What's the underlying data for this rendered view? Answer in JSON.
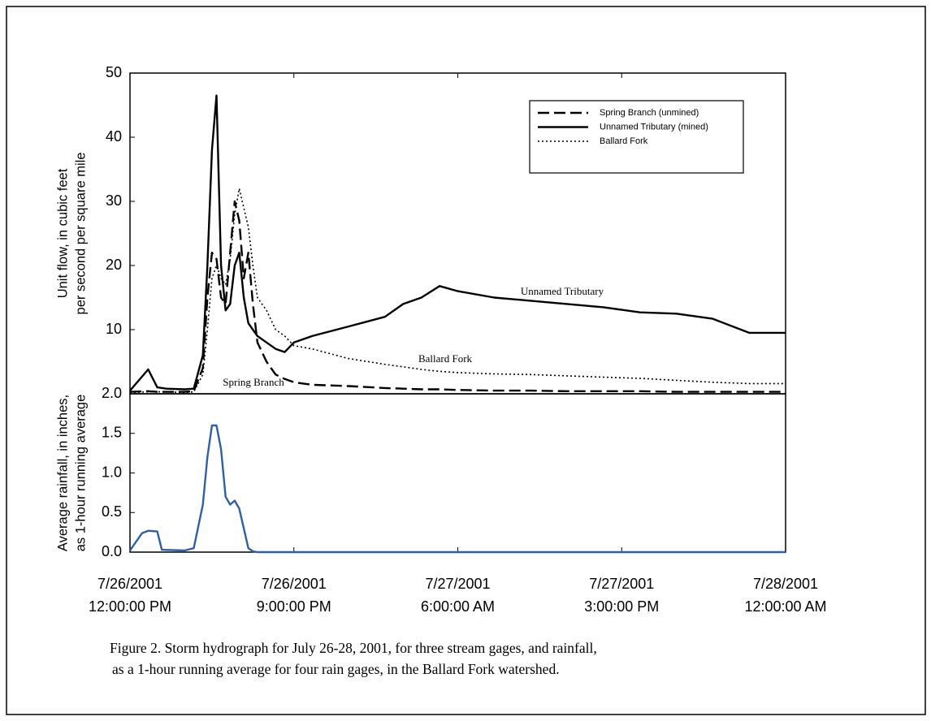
{
  "chart_data": [
    {
      "type": "line",
      "ylabel": [
        "Unit flow, in cubic feet",
        "per second per square mile"
      ],
      "x": [
        "2001-07-26T12:00:00",
        "2001-07-26T13:00:00",
        "2001-07-26T13:30:00",
        "2001-07-26T14:00:00",
        "2001-07-26T15:00:00",
        "2001-07-26T15:30:00",
        "2001-07-26T16:00:00",
        "2001-07-26T16:15:00",
        "2001-07-26T16:30:00",
        "2001-07-26T16:45:00",
        "2001-07-26T17:00:00",
        "2001-07-26T17:15:00",
        "2001-07-26T17:30:00",
        "2001-07-26T17:45:00",
        "2001-07-26T18:00:00",
        "2001-07-26T18:15:00",
        "2001-07-26T18:30:00",
        "2001-07-26T18:45:00",
        "2001-07-26T19:00:00",
        "2001-07-26T19:30:00",
        "2001-07-26T20:00:00",
        "2001-07-26T20:30:00",
        "2001-07-26T21:00:00",
        "2001-07-26T22:00:00",
        "2001-07-27T00:00:00",
        "2001-07-27T02:00:00",
        "2001-07-27T03:00:00",
        "2001-07-27T04:00:00",
        "2001-07-27T05:00:00",
        "2001-07-27T06:00:00",
        "2001-07-27T08:00:00",
        "2001-07-27T10:00:00",
        "2001-07-27T12:00:00",
        "2001-07-27T14:00:00",
        "2001-07-27T16:00:00",
        "2001-07-27T18:00:00",
        "2001-07-27T20:00:00",
        "2001-07-27T22:00:00",
        "2001-07-28T00:00:00"
      ],
      "series": [
        {
          "name": "Spring Branch (unmined)",
          "color": "#000000",
          "dash": "dashed",
          "values": [
            0.3,
            0.4,
            0.3,
            0.3,
            0.3,
            0.4,
            4,
            15,
            22,
            21,
            15,
            14,
            22,
            30,
            27,
            18,
            22,
            14,
            8,
            5,
            3,
            2.3,
            1.8,
            1.4,
            1.2,
            0.9,
            0.8,
            0.7,
            0.7,
            0.6,
            0.5,
            0.5,
            0.4,
            0.4,
            0.4,
            0.3,
            0.3,
            0.3,
            0.3
          ]
        },
        {
          "name": "Unnamed Tributary (mined)",
          "color": "#000000",
          "dash": "solid",
          "values": [
            0.5,
            3.8,
            1,
            0.8,
            0.7,
            0.8,
            6,
            20,
            38,
            46.5,
            20,
            13,
            14,
            20,
            22,
            15,
            11,
            10,
            9,
            8,
            7,
            6.5,
            8,
            9,
            10.5,
            12,
            14,
            15,
            16.8,
            16,
            15,
            14.5,
            14,
            13.5,
            12.7,
            12.5,
            11.7,
            9.5,
            9.5
          ]
        },
        {
          "name": "Ballard Fork",
          "color": "#000000",
          "dash": "dotted",
          "values": [
            0.2,
            0.3,
            0.3,
            0.3,
            0.2,
            0.3,
            3,
            10,
            18,
            20,
            18,
            17,
            21,
            28,
            32,
            29,
            26,
            20,
            15,
            13,
            10,
            9,
            7.5,
            7,
            5.5,
            4.6,
            4.2,
            3.8,
            3.5,
            3.3,
            3.1,
            3,
            2.8,
            2.6,
            2.4,
            2.1,
            1.8,
            1.6,
            1.6
          ]
        }
      ],
      "annotations": [
        "Unnamed Tributary",
        "Ballard Fork",
        "Spring Branch"
      ],
      "xlim": [
        "2001-07-26T12:00:00",
        "2001-07-28T00:00:00"
      ],
      "ylim": [
        0,
        50
      ],
      "yticks": [
        10,
        20,
        30,
        40,
        50
      ],
      "legend": "upper right"
    },
    {
      "type": "line",
      "ylabel": [
        "Average rainfall, in inches,",
        "as 1-hour running average"
      ],
      "x": [
        "2001-07-26T12:00:00",
        "2001-07-26T12:40:00",
        "2001-07-26T13:00:00",
        "2001-07-26T13:30:00",
        "2001-07-26T13:45:00",
        "2001-07-26T15:00:00",
        "2001-07-26T15:30:00",
        "2001-07-26T16:00:00",
        "2001-07-26T16:15:00",
        "2001-07-26T16:30:00",
        "2001-07-26T16:45:00",
        "2001-07-26T17:00:00",
        "2001-07-26T17:15:00",
        "2001-07-26T17:30:00",
        "2001-07-26T17:45:00",
        "2001-07-26T18:00:00",
        "2001-07-26T18:15:00",
        "2001-07-26T18:30:00",
        "2001-07-26T18:45:00",
        "2001-07-26T19:00:00",
        "2001-07-27T00:00:00",
        "2001-07-27T12:00:00",
        "2001-07-28T00:00:00"
      ],
      "series": [
        {
          "name": "Rainfall",
          "color": "#2f5fa8",
          "dash": "solid",
          "values": [
            0.02,
            0.24,
            0.27,
            0.26,
            0.03,
            0.02,
            0.05,
            0.6,
            1.2,
            1.6,
            1.6,
            1.3,
            0.7,
            0.6,
            0.65,
            0.55,
            0.3,
            0.05,
            0.01,
            0,
            0,
            0,
            0
          ]
        }
      ],
      "xlim": [
        "2001-07-26T12:00:00",
        "2001-07-28T00:00:00"
      ],
      "xticks": [
        {
          "value": "2001-07-26T12:00:00",
          "label": [
            "7/26/2001",
            "12:00:00 PM"
          ]
        },
        {
          "value": "2001-07-26T21:00:00",
          "label": [
            "7/26/2001",
            "9:00:00 PM"
          ]
        },
        {
          "value": "2001-07-27T06:00:00",
          "label": [
            "7/27/2001",
            "6:00:00 AM"
          ]
        },
        {
          "value": "2001-07-27T15:00:00",
          "label": [
            "7/27/2001",
            "3:00:00 PM"
          ]
        },
        {
          "value": "2001-07-28T00:00:00",
          "label": [
            "7/28/2001",
            "12:00:00 AM"
          ]
        }
      ],
      "ylim": [
        0,
        2
      ],
      "yticks": [
        {
          "value": 0,
          "label": "0.0"
        },
        0.5,
        {
          "value": 1,
          "label": "1.0"
        },
        1.5,
        {
          "value": 2,
          "label": "2.0"
        }
      ]
    }
  ],
  "caption": [
    "Figure 2.  Storm hydrograph for July 26-28, 2001, for three stream gages, and rainfall,",
    "as a 1-hour running average for four rain gages, in the Ballard Fork watershed."
  ]
}
